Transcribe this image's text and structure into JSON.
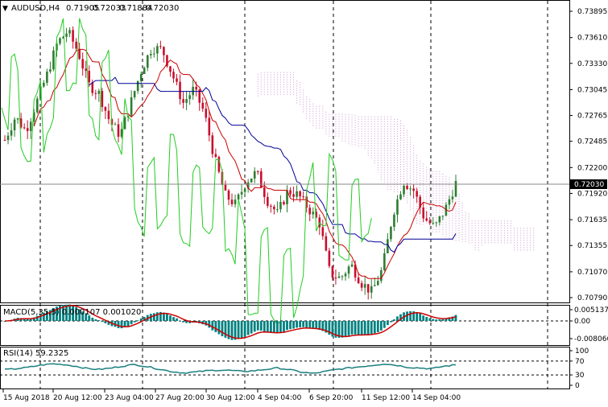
{
  "symbol": "AUDUSD,H4",
  "ohlc": {
    "open": "0.71905",
    "high": "0.72033",
    "low": "0.71884",
    "close": "0.72030"
  },
  "macd_label": "MACD(5,35,5) 0.000107 0.001020",
  "rsi_label": "RSI(14) 59.2325",
  "chart_data": {
    "type": "line",
    "title": "AUDUSD,H4",
    "main_yticks": [
      "0.73895",
      "0.73610",
      "0.73330",
      "0.73045",
      "0.72765",
      "0.72485",
      "0.72200",
      "0.71920",
      "0.71635",
      "0.71355",
      "0.71070",
      "0.70790"
    ],
    "current_price": "0.72030",
    "macd_yticks": [
      "0.005137",
      "0.00",
      "-0.008066"
    ],
    "rsi_yticks": [
      "100",
      "70",
      "30",
      "0"
    ],
    "x_ticks": [
      "15 Aug 2018",
      "20 Aug 12:00",
      "23 Aug 04:00",
      "27 Aug 20:00",
      "30 Aug 12:00",
      "4 Sep 04:00",
      "6 Sep 20:00",
      "11 Sep 12:00",
      "14 Sep 04:00"
    ],
    "price_series": [
      0.725,
      0.7275,
      0.726,
      0.729,
      0.732,
      0.7355,
      0.7368,
      0.7345,
      0.731,
      0.73,
      0.727,
      0.7255,
      0.729,
      0.7325,
      0.735,
      0.7348,
      0.732,
      0.729,
      0.7305,
      0.728,
      0.723,
      0.719,
      0.718,
      0.7205,
      0.7215,
      0.7185,
      0.717,
      0.7195,
      0.719,
      0.7175,
      0.716,
      0.7105,
      0.71,
      0.7115,
      0.7095,
      0.7085,
      0.711,
      0.717,
      0.7205,
      0.7195,
      0.7165,
      0.7155,
      0.7175,
      0.7203
    ],
    "rsi_series": [
      45,
      48,
      52,
      58,
      62,
      60,
      55,
      48,
      46,
      50,
      56,
      60,
      54,
      47,
      40,
      36,
      38,
      42,
      44,
      43,
      40,
      42,
      46,
      50,
      45,
      38,
      34,
      40,
      46,
      50,
      54,
      58,
      62,
      58,
      52,
      50,
      48,
      55,
      59
    ],
    "colors": {
      "up": "#2e7d32",
      "down": "#c8102e",
      "tenkan": "#cc0000",
      "kijun": "#000099",
      "chikou": "#22cc22",
      "cloud": "#cc99cc",
      "macd_hist": "#008080",
      "macd_signal": "#cc0000",
      "rsi": "#1a7f7f",
      "grid": "#000000"
    }
  }
}
